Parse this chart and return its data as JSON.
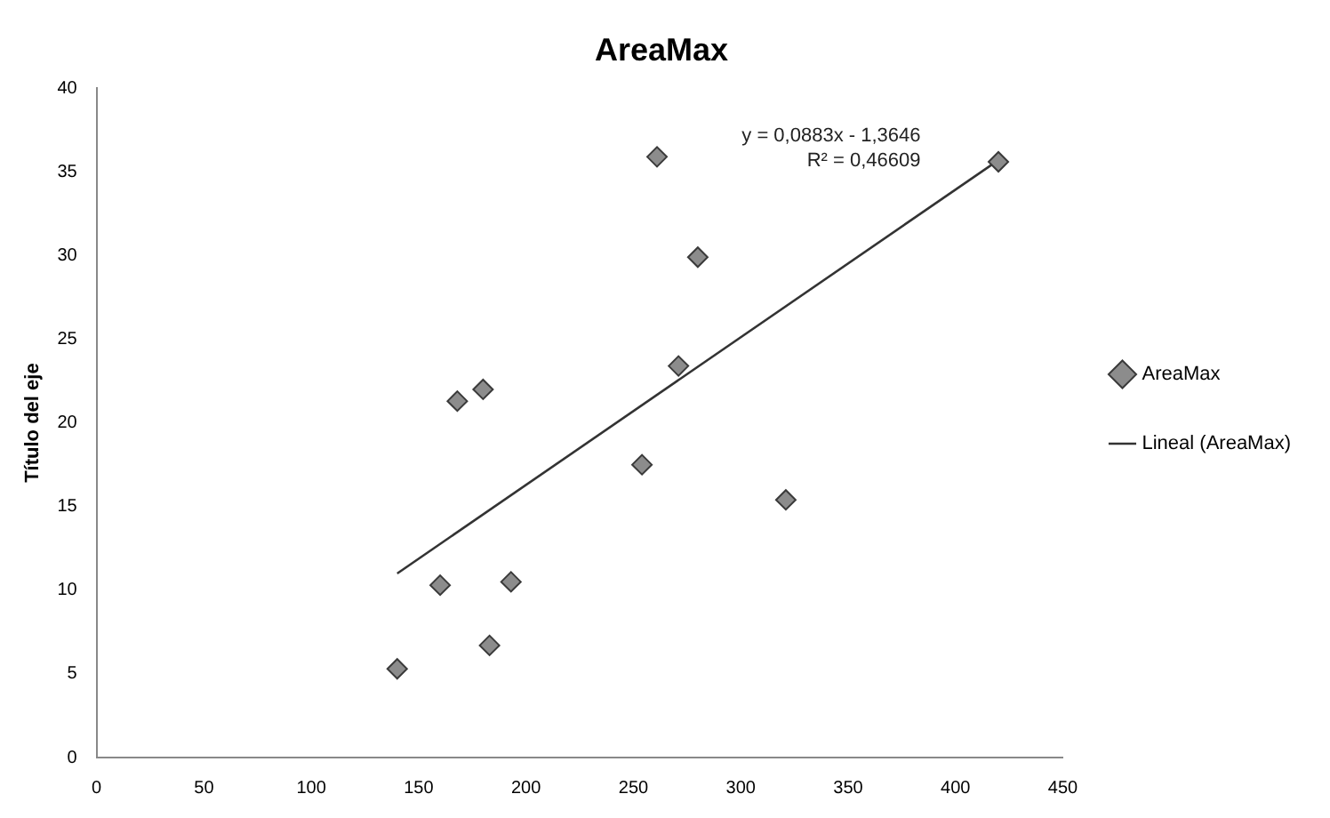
{
  "chart_data": {
    "type": "scatter",
    "title": "AreaMax",
    "ylabel": "Título del eje",
    "xlim": [
      0,
      450
    ],
    "xticks": [
      0,
      50,
      100,
      150,
      200,
      250,
      300,
      350,
      400,
      450
    ],
    "ylim": [
      0,
      40
    ],
    "yticks": [
      0,
      5,
      10,
      15,
      20,
      25,
      30,
      35,
      40
    ],
    "grid": false,
    "legend": "right",
    "marker": "diamond",
    "annotations": [
      "y = 0,0883x - 1,3646",
      "R² = 0,46609"
    ],
    "series": [
      {
        "name": "AreaMax",
        "color": "#8c8c8c",
        "x": [
          140,
          160,
          168,
          180,
          183,
          193,
          254,
          261,
          271,
          280,
          321,
          420
        ],
        "values": [
          5.3,
          10.3,
          21.3,
          22,
          6.7,
          10.5,
          17.5,
          35.9,
          23.4,
          29.9,
          15.4,
          35.6
        ]
      },
      {
        "name": "Lineal (AreaMax)",
        "type": "line",
        "color": "#333333",
        "x": [
          140,
          420
        ],
        "values": [
          11,
          35.7
        ],
        "marker": "none",
        "line_style": "solid"
      }
    ]
  }
}
